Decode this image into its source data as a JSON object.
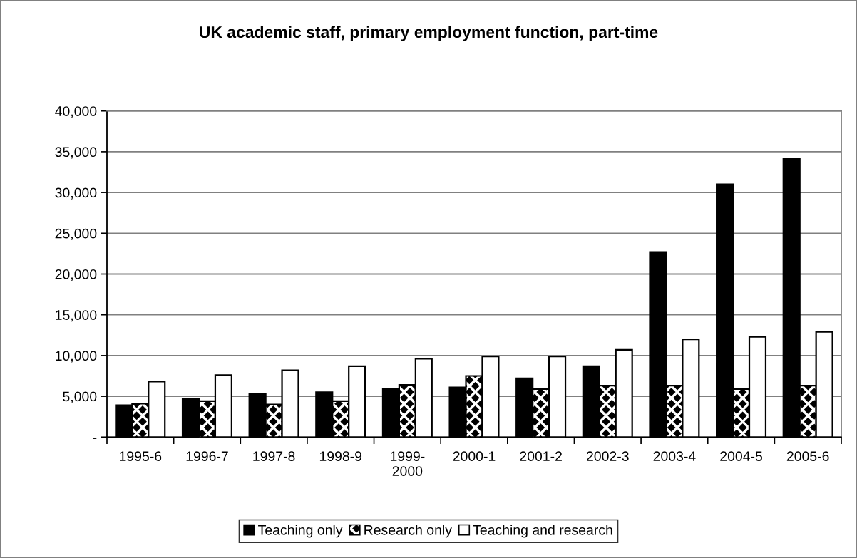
{
  "chart_data": {
    "type": "bar",
    "title": "UK academic staff, primary employment function, part-time",
    "categories": [
      "1995-6",
      "1996-7",
      "1997-8",
      "1998-9",
      "1999-\n2000",
      "2000-1",
      "2001-2",
      "2002-3",
      "2003-4",
      "2004-5",
      "2005-6"
    ],
    "series": [
      {
        "name": "Teaching only",
        "color": "#000000",
        "values": [
          3900,
          4700,
          5300,
          5500,
          5900,
          6100,
          7200,
          8700,
          22700,
          31000,
          34100
        ]
      },
      {
        "name": "Research only",
        "color": "#000000",
        "values": [
          4100,
          4400,
          4000,
          4400,
          6400,
          7500,
          5900,
          6300,
          6300,
          5900,
          6300
        ]
      },
      {
        "name": "Teaching and research",
        "color": "#ffffff",
        "values": [
          6800,
          7600,
          8200,
          8700,
          9600,
          9900,
          9900,
          10700,
          12000,
          12300,
          12900
        ]
      }
    ],
    "ylim": [
      0,
      40000
    ],
    "yticks": [
      {
        "value": 0,
        "label": "-"
      },
      {
        "value": 5000,
        "label": "5,000"
      },
      {
        "value": 10000,
        "label": "10,000"
      },
      {
        "value": 15000,
        "label": "15,000"
      },
      {
        "value": 20000,
        "label": "20,000"
      },
      {
        "value": 25000,
        "label": "25,000"
      },
      {
        "value": 30000,
        "label": "30,000"
      },
      {
        "value": 35000,
        "label": "35,000"
      },
      {
        "value": 40000,
        "label": "40,000"
      }
    ],
    "grid": "y",
    "legend": "bottom"
  }
}
